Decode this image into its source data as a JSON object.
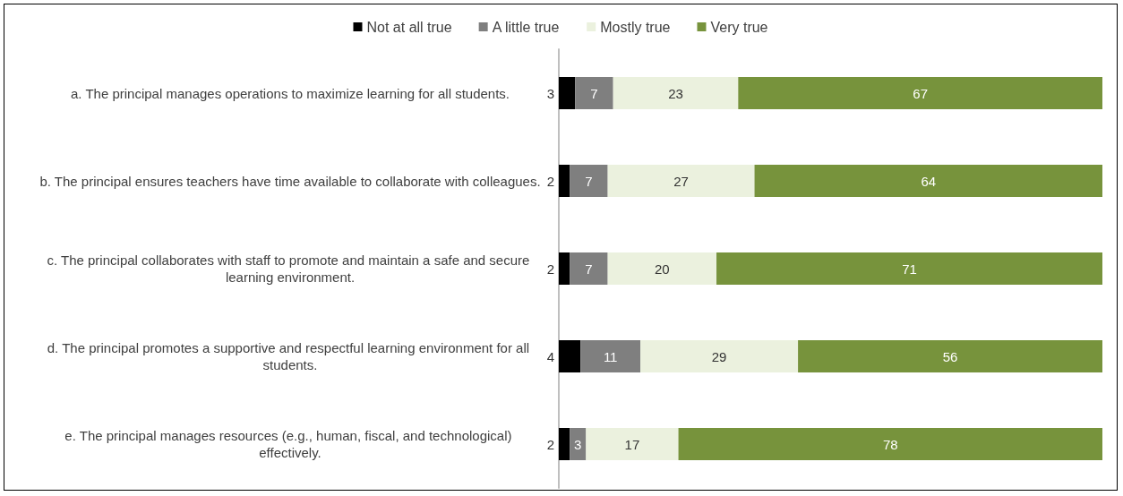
{
  "chart_data": {
    "type": "bar",
    "orientation": "horizontal",
    "stacked": true,
    "legend": "top",
    "grid": false,
    "data_labels": true,
    "tick_labels": "y",
    "xlim": [
      0,
      100
    ],
    "categories": [
      "a. The principal manages operations to maximize learning for all students.",
      "b. The principal ensures teachers have time available to collaborate with colleagues.",
      "c. The principal collaborates with staff to promote and maintain a safe and secure learning environment.",
      "d. The principal promotes a supportive and respectful learning environment for all students.",
      "e. The principal manages resources (e.g., human, fiscal, and technological) effectively."
    ],
    "series": [
      {
        "name": "Not at all true",
        "color": "#000000",
        "values": [
          3,
          2,
          2,
          4,
          2
        ]
      },
      {
        "name": "A little true",
        "color": "#7f7f7f",
        "values": [
          7,
          7,
          7,
          11,
          3
        ]
      },
      {
        "name": "Mostly true",
        "color": "#ebf1de",
        "values": [
          23,
          27,
          20,
          29,
          17
        ]
      },
      {
        "name": "Very true",
        "color": "#77933c",
        "values": [
          67,
          64,
          71,
          56,
          78
        ]
      }
    ]
  }
}
